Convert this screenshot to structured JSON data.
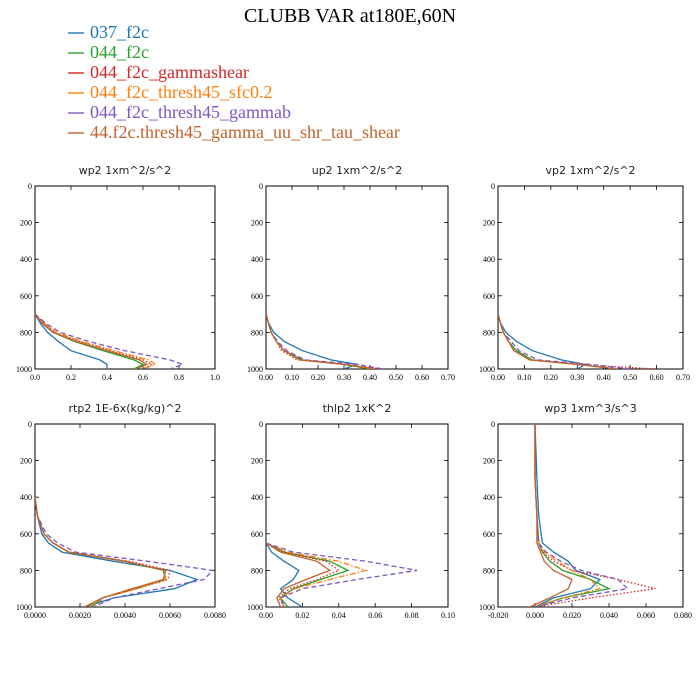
{
  "figure": {
    "title": "CLUBB VAR at180E,60N"
  },
  "legend": [
    {
      "label": "037_f2c",
      "color": "#1f77b4",
      "dash": "solid"
    },
    {
      "label": "044_f2c",
      "color": "#2ca02c",
      "dash": "solid"
    },
    {
      "label": "044_f2c_gammashear",
      "color": "#d62728",
      "dash": "dot"
    },
    {
      "label": "044_f2c_thresh45_sfc0.2",
      "color": "#ff7f0e",
      "dash": "dashdot"
    },
    {
      "label": "044_f2c_thresh45_gammab",
      "color": "#7e57c2",
      "dash": "dash"
    },
    {
      "label": "44.f2c.thresh45_gamma_uu_shr_tau_shear",
      "color": "#c0632c",
      "dash": "solid"
    }
  ],
  "chart_data": [
    {
      "type": "line",
      "title": "wp2   1xm^2/s^2",
      "xlim": [
        0,
        1.0
      ],
      "ylim": [
        1000,
        0
      ],
      "xticks": [
        0,
        0.2,
        0.4,
        0.6,
        0.8,
        1.0
      ],
      "xtick_labels": [
        "0.0",
        "0.2",
        "0.4",
        "0.6",
        "0.8",
        "1.0"
      ],
      "yticks": [
        0,
        200,
        400,
        600,
        800,
        1000
      ],
      "ytick_labels": [
        "0",
        "200",
        "400",
        "600",
        "800",
        "1000"
      ],
      "y": [
        700,
        750,
        800,
        850,
        900,
        950,
        975,
        1000
      ],
      "series": [
        {
          "name": "037_f2c",
          "x": [
            0.0,
            0.03,
            0.07,
            0.13,
            0.2,
            0.36,
            0.4,
            0.4
          ]
        },
        {
          "name": "044_f2c",
          "x": [
            0.0,
            0.04,
            0.1,
            0.22,
            0.38,
            0.55,
            0.6,
            0.55
          ]
        },
        {
          "name": "044_f2c_gammashear",
          "x": [
            0.0,
            0.05,
            0.11,
            0.25,
            0.42,
            0.6,
            0.65,
            0.6
          ]
        },
        {
          "name": "044_f2c_thresh45_sfc0.2",
          "x": [
            0.0,
            0.05,
            0.12,
            0.26,
            0.44,
            0.63,
            0.67,
            0.6
          ]
        },
        {
          "name": "044_f2c_thresh45_gammab",
          "x": [
            0.0,
            0.06,
            0.14,
            0.3,
            0.5,
            0.75,
            0.82,
            0.75
          ]
        },
        {
          "name": "44.f2c.thresh45_gamma_uu_shr_tau_shear",
          "x": [
            0.0,
            0.04,
            0.1,
            0.23,
            0.4,
            0.58,
            0.62,
            0.56
          ]
        }
      ]
    },
    {
      "type": "line",
      "title": "up2   1xm^2/s^2",
      "xlim": [
        0,
        0.7
      ],
      "ylim": [
        1000,
        0
      ],
      "xticks": [
        0,
        0.1,
        0.2,
        0.3,
        0.4,
        0.5,
        0.6,
        0.7
      ],
      "xtick_labels": [
        "0.00",
        "0.10",
        "0.20",
        "0.30",
        "0.40",
        "0.50",
        "0.60",
        "0.70"
      ],
      "yticks": [
        0,
        200,
        400,
        600,
        800,
        1000
      ],
      "ytick_labels": [
        "0",
        "200",
        "400",
        "600",
        "800",
        "1000"
      ],
      "y": [
        700,
        750,
        800,
        850,
        900,
        950,
        975,
        1000
      ],
      "series": [
        {
          "name": "037_f2c",
          "x": [
            0.0,
            0.01,
            0.03,
            0.07,
            0.14,
            0.25,
            0.35,
            0.3
          ]
        },
        {
          "name": "044_f2c",
          "x": [
            0.0,
            0.01,
            0.02,
            0.04,
            0.07,
            0.14,
            0.3,
            0.4
          ]
        },
        {
          "name": "044_f2c_gammashear",
          "x": [
            0.0,
            0.01,
            0.02,
            0.04,
            0.06,
            0.12,
            0.3,
            0.45
          ]
        },
        {
          "name": "044_f2c_thresh45_sfc0.2",
          "x": [
            0.0,
            0.01,
            0.02,
            0.04,
            0.07,
            0.13,
            0.3,
            0.42
          ]
        },
        {
          "name": "044_f2c_thresh45_gammab",
          "x": [
            0.0,
            0.01,
            0.02,
            0.045,
            0.08,
            0.15,
            0.35,
            0.45
          ]
        },
        {
          "name": "44.f2c.thresh45_gamma_uu_shr_tau_shear",
          "x": [
            0.0,
            0.01,
            0.02,
            0.04,
            0.07,
            0.13,
            0.3,
            0.42
          ]
        }
      ]
    },
    {
      "type": "line",
      "title": "vp2   1xm^2/s^2",
      "xlim": [
        0,
        0.7
      ],
      "ylim": [
        1000,
        0
      ],
      "xticks": [
        0,
        0.1,
        0.2,
        0.3,
        0.4,
        0.5,
        0.6,
        0.7
      ],
      "xtick_labels": [
        "0.00",
        "0.10",
        "0.20",
        "0.30",
        "0.40",
        "0.50",
        "0.60",
        "0.70"
      ],
      "yticks": [
        0,
        200,
        400,
        600,
        800,
        1000
      ],
      "ytick_labels": [
        "0",
        "200",
        "400",
        "600",
        "800",
        "1000"
      ],
      "y": [
        700,
        750,
        800,
        850,
        900,
        950,
        975,
        1000
      ],
      "series": [
        {
          "name": "037_f2c",
          "x": [
            0.0,
            0.01,
            0.03,
            0.07,
            0.13,
            0.24,
            0.33,
            0.3
          ]
        },
        {
          "name": "044_f2c",
          "x": [
            0.0,
            0.01,
            0.02,
            0.04,
            0.07,
            0.13,
            0.3,
            0.45
          ]
        },
        {
          "name": "044_f2c_gammashear",
          "x": [
            0.0,
            0.01,
            0.02,
            0.04,
            0.06,
            0.12,
            0.3,
            0.6
          ]
        },
        {
          "name": "044_f2c_thresh45_sfc0.2",
          "x": [
            0.0,
            0.01,
            0.02,
            0.04,
            0.06,
            0.12,
            0.3,
            0.45
          ]
        },
        {
          "name": "044_f2c_thresh45_gammab",
          "x": [
            0.0,
            0.01,
            0.02,
            0.05,
            0.08,
            0.15,
            0.35,
            0.5
          ]
        },
        {
          "name": "44.f2c.thresh45_gamma_uu_shr_tau_shear",
          "x": [
            0.0,
            0.01,
            0.02,
            0.04,
            0.06,
            0.12,
            0.3,
            0.45
          ]
        }
      ]
    },
    {
      "type": "line",
      "title": "rtp2   1E-6x(kg/kg)^2",
      "xlim": [
        0,
        0.008
      ],
      "ylim": [
        1000,
        0
      ],
      "xticks": [
        0,
        0.002,
        0.004,
        0.006,
        0.008
      ],
      "xtick_labels": [
        "0.0000",
        "0.0020",
        "0.0040",
        "0.0060",
        "0.0080"
      ],
      "yticks": [
        0,
        200,
        400,
        600,
        800,
        1000
      ],
      "ytick_labels": [
        "0",
        "200",
        "400",
        "600",
        "800",
        "1000"
      ],
      "y": [
        400,
        500,
        600,
        650,
        700,
        750,
        800,
        850,
        900,
        950,
        1000
      ],
      "series": [
        {
          "name": "037_f2c",
          "x": [
            0.0,
            0.0001,
            0.0003,
            0.0006,
            0.0012,
            0.0035,
            0.006,
            0.0072,
            0.0062,
            0.0035,
            0.0022
          ]
        },
        {
          "name": "044_f2c",
          "x": [
            0.0,
            0.0001,
            0.0004,
            0.0008,
            0.0015,
            0.004,
            0.0057,
            0.0058,
            0.0045,
            0.003,
            0.0025
          ]
        },
        {
          "name": "044_f2c_gammashear",
          "x": [
            0.0,
            0.0001,
            0.0004,
            0.0008,
            0.0015,
            0.0042,
            0.006,
            0.0059,
            0.0045,
            0.003,
            0.0028
          ]
        },
        {
          "name": "044_f2c_thresh45_sfc0.2",
          "x": [
            0.0,
            0.0001,
            0.0004,
            0.0008,
            0.0015,
            0.004,
            0.0058,
            0.0058,
            0.0045,
            0.003,
            0.0024
          ]
        },
        {
          "name": "044_f2c_thresh45_gammab",
          "x": [
            0.0,
            0.0001,
            0.0005,
            0.001,
            0.0018,
            0.005,
            0.0079,
            0.0075,
            0.0055,
            0.0035,
            0.0026
          ]
        },
        {
          "name": "44.f2c.thresh45_gamma_uu_shr_tau_shear",
          "x": [
            0.0,
            0.0001,
            0.0004,
            0.0008,
            0.0015,
            0.004,
            0.0058,
            0.0057,
            0.0043,
            0.003,
            0.0022
          ]
        }
      ]
    },
    {
      "type": "line",
      "title": "thlp2   1xK^2",
      "xlim": [
        0,
        0.1
      ],
      "ylim": [
        1000,
        0
      ],
      "xticks": [
        0,
        0.02,
        0.04,
        0.06,
        0.08,
        0.1
      ],
      "xtick_labels": [
        "0.00",
        "0.02",
        "0.04",
        "0.06",
        "0.08",
        "0.10"
      ],
      "yticks": [
        0,
        200,
        400,
        600,
        800,
        1000
      ],
      "ytick_labels": [
        "0",
        "200",
        "400",
        "600",
        "800",
        "1000"
      ],
      "y": [
        650,
        700,
        750,
        800,
        850,
        900,
        950,
        1000
      ],
      "series": [
        {
          "name": "037_f2c",
          "x": [
            0.0,
            0.003,
            0.01,
            0.018,
            0.015,
            0.008,
            0.012,
            0.02
          ]
        },
        {
          "name": "044_f2c",
          "x": [
            0.0,
            0.01,
            0.035,
            0.045,
            0.03,
            0.015,
            0.008,
            0.012
          ]
        },
        {
          "name": "044_f2c_gammashear",
          "x": [
            0.0,
            0.01,
            0.033,
            0.04,
            0.028,
            0.013,
            0.007,
            0.01
          ]
        },
        {
          "name": "044_f2c_thresh45_sfc0.2",
          "x": [
            0.0,
            0.012,
            0.04,
            0.055,
            0.035,
            0.016,
            0.008,
            0.01
          ]
        },
        {
          "name": "044_f2c_thresh45_gammab",
          "x": [
            0.0,
            0.015,
            0.055,
            0.083,
            0.05,
            0.02,
            0.008,
            0.01
          ]
        },
        {
          "name": "44.f2c.thresh45_gamma_uu_shr_tau_shear",
          "x": [
            0.0,
            0.008,
            0.028,
            0.035,
            0.022,
            0.01,
            0.006,
            0.008
          ]
        }
      ]
    },
    {
      "type": "line",
      "title": "wp3   1xm^3/s^3",
      "xlim": [
        -0.02,
        0.08
      ],
      "ylim": [
        1000,
        0
      ],
      "xticks": [
        -0.02,
        0.0,
        0.02,
        0.04,
        0.06,
        0.08
      ],
      "xtick_labels": [
        "-0.020",
        "0.000",
        "0.020",
        "0.040",
        "0.060",
        "0.080"
      ],
      "yticks": [
        0,
        200,
        400,
        600,
        800,
        1000
      ],
      "ytick_labels": [
        "0",
        "200",
        "400",
        "600",
        "800",
        "1000"
      ],
      "y": [
        0,
        300,
        500,
        650,
        700,
        750,
        800,
        850,
        900,
        950,
        1000
      ],
      "series": [
        {
          "name": "037_f2c",
          "x": [
            0.0,
            0.001,
            0.002,
            0.004,
            0.01,
            0.018,
            0.022,
            0.035,
            0.03,
            0.01,
            0.0
          ]
        },
        {
          "name": "044_f2c",
          "x": [
            0.0,
            0.0,
            0.001,
            0.002,
            0.004,
            0.008,
            0.015,
            0.03,
            0.04,
            0.015,
            0.0
          ]
        },
        {
          "name": "044_f2c_gammashear",
          "x": [
            0.0,
            0.0,
            0.001,
            0.002,
            0.004,
            0.01,
            0.02,
            0.045,
            0.065,
            0.03,
            0.0
          ]
        },
        {
          "name": "044_f2c_thresh45_sfc0.2",
          "x": [
            0.0,
            0.0,
            0.001,
            0.002,
            0.005,
            0.012,
            0.02,
            0.03,
            0.035,
            0.015,
            0.0
          ]
        },
        {
          "name": "044_f2c_thresh45_gammab",
          "x": [
            0.0,
            0.0,
            0.001,
            0.002,
            0.006,
            0.014,
            0.025,
            0.045,
            0.05,
            0.02,
            0.0
          ]
        },
        {
          "name": "44.f2c.thresh45_gamma_uu_shr_tau_shear",
          "x": [
            0.0,
            0.0,
            0.001,
            0.001,
            0.003,
            0.005,
            0.01,
            0.02,
            0.018,
            0.008,
            -0.003
          ]
        }
      ]
    }
  ]
}
